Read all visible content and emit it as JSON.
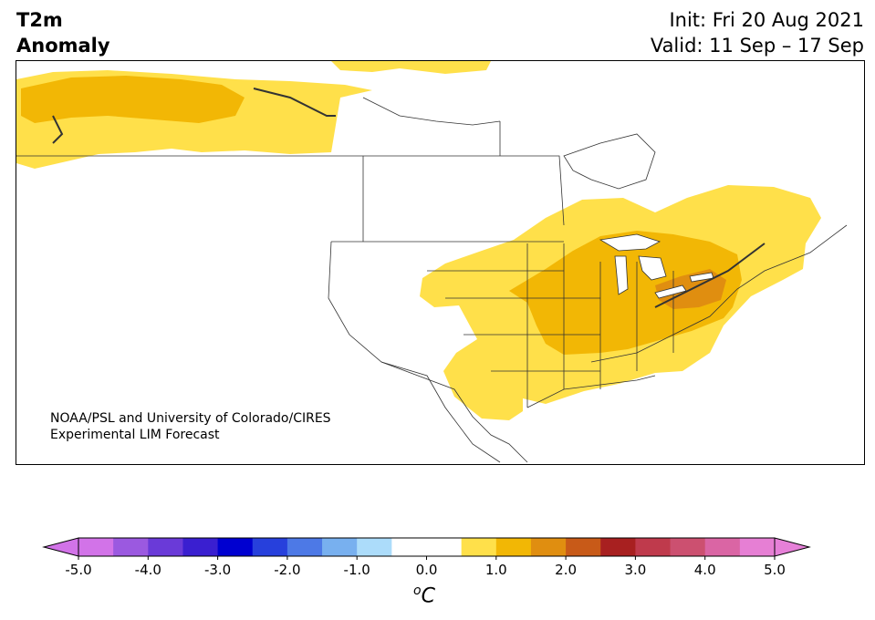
{
  "header": {
    "variable": "T2m",
    "type": "Anomaly",
    "init": "Init: Fri 20 Aug 2021",
    "valid": "Valid: 11 Sep – 17 Sep"
  },
  "map": {
    "region": "North America",
    "credit_line1": "NOAA/PSL and University of Colorado/CIRES",
    "credit_line2": "Experimental LIM Forecast",
    "anomaly_areas": [
      {
        "region": "Alaska / Yukon",
        "level": "0.5 to 1.5",
        "color": "#ffe04a"
      },
      {
        "region": "Central Alaska core",
        "level": "1.0 to 1.5",
        "color": "#f2b705"
      },
      {
        "region": "Central and eastern US / southeastern Canada",
        "level": "0.5 to 1.0",
        "color": "#ffe04a"
      },
      {
        "region": "Midwest, Great Lakes, Northeast",
        "level": "1.0 to 1.5",
        "color": "#f2b705"
      },
      {
        "region": "Pennsylvania / New York core",
        "level": "1.5 to 2.0",
        "color": "#e08e10"
      }
    ]
  },
  "colorbar": {
    "unit_base": "C",
    "unit_sup": "o",
    "tick_labels": [
      "-5.0",
      "-4.0",
      "-3.0",
      "-2.0",
      "-1.0",
      "0.0",
      "1.0",
      "2.0",
      "3.0",
      "4.0",
      "5.0"
    ],
    "bin_colors": [
      "#d273e8",
      "#9b59e0",
      "#6a3ad8",
      "#3a1fd0",
      "#0000d0",
      "#2740dc",
      "#4d79e6",
      "#78b0ef",
      "#acdcfa",
      "#ffffff",
      "#ffffff",
      "#ffe04a",
      "#f2b705",
      "#e08e10",
      "#c85a18",
      "#a82020",
      "#bf3a4c",
      "#cc5070",
      "#da65a4",
      "#e67fd4"
    ],
    "under_color": "#d273e8",
    "over_color": "#e680d8",
    "range": [
      -5.0,
      5.0
    ],
    "bin_width": 0.5
  }
}
